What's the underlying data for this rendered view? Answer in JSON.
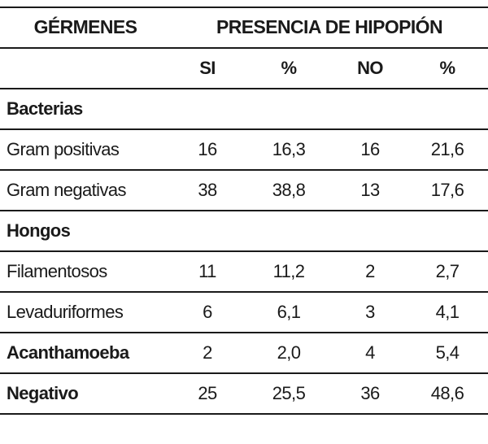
{
  "table": {
    "header": {
      "col1": "GÉRMENES",
      "group": "PRESENCIA DE HIPOPIÓN"
    },
    "subheader": [
      "SI",
      "%",
      "NO",
      "%"
    ],
    "rows": [
      {
        "name": "Bacterias",
        "bold": true,
        "values": [
          "",
          "",
          "",
          ""
        ]
      },
      {
        "name": "Gram positivas",
        "bold": false,
        "values": [
          "16",
          "16,3",
          "16",
          "21,6"
        ]
      },
      {
        "name": "Gram negativas",
        "bold": false,
        "values": [
          "38",
          "38,8",
          "13",
          "17,6"
        ]
      },
      {
        "name": "Hongos",
        "bold": true,
        "values": [
          "",
          "",
          "",
          ""
        ]
      },
      {
        "name": "Filamentosos",
        "bold": false,
        "values": [
          "11",
          "11,2",
          "2",
          "2,7"
        ]
      },
      {
        "name": "Levaduriformes",
        "bold": false,
        "values": [
          "6",
          "6,1",
          "3",
          "4,1"
        ]
      },
      {
        "name": "Acanthamoeba",
        "bold": true,
        "values": [
          "2",
          "2,0",
          "4",
          "5,4"
        ]
      },
      {
        "name": "Negativo",
        "bold": true,
        "values": [
          "25",
          "25,5",
          "36",
          "48,6"
        ]
      }
    ]
  }
}
